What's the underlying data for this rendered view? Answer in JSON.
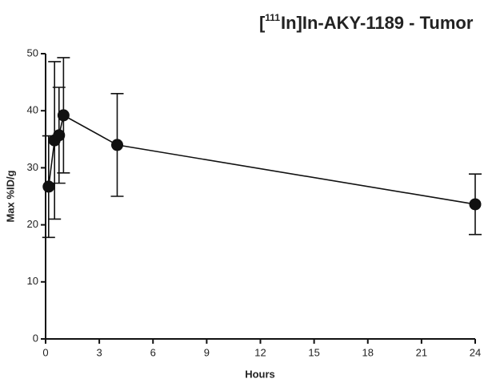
{
  "chart_data": {
    "type": "line",
    "title_prefix": "[",
    "title_superscript": "111",
    "title_rest": "In]In-AKY-1189 - Tumor",
    "x_label": "Hours",
    "y_label": "Max %ID/g",
    "x": [
      0.17,
      0.5,
      0.75,
      1,
      4,
      24
    ],
    "series": [
      {
        "name": "Tumor",
        "color": "#111111",
        "values": [
          26.7,
          34.8,
          35.7,
          39.2,
          34.0,
          23.6
        ],
        "errors": [
          8.9,
          13.8,
          8.4,
          10.1,
          9.0,
          5.3
        ]
      }
    ],
    "xlim": [
      0,
      24
    ],
    "xticks": [
      0,
      3,
      6,
      9,
      12,
      15,
      18,
      21,
      24
    ],
    "ylim": [
      0,
      50
    ],
    "yticks": [
      0,
      10,
      20,
      30,
      40,
      50
    ],
    "grid": false,
    "legend": false
  }
}
